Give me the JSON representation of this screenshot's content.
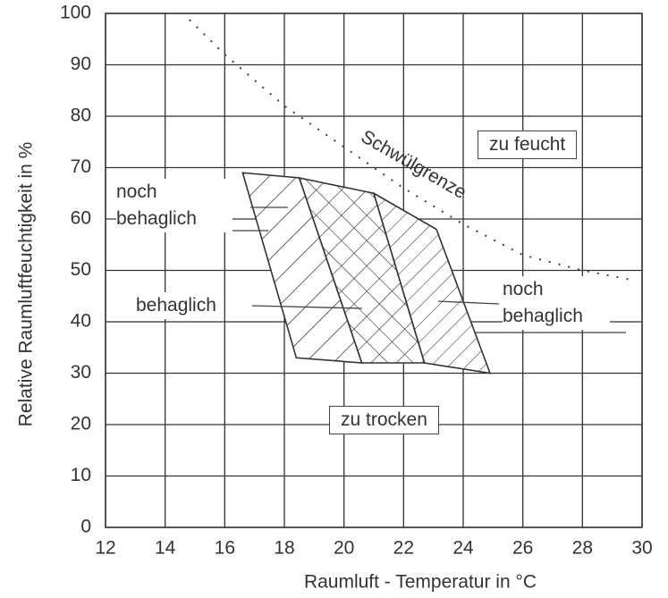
{
  "chart_data": {
    "type": "region",
    "xlabel": "Raumluft - Temperatur in °C",
    "ylabel": "Relative Raumluftfeuchtigkeit in %",
    "xlim": [
      12,
      30
    ],
    "ylim": [
      0,
      100
    ],
    "xticks": [
      12,
      14,
      16,
      18,
      20,
      22,
      24,
      26,
      28,
      30
    ],
    "yticks": [
      0,
      10,
      20,
      30,
      40,
      50,
      60,
      70,
      80,
      90,
      100
    ],
    "grid": true,
    "color": "#333333",
    "series": [
      {
        "name": "Schwülgrenze",
        "color": "#444444",
        "style": "dotted",
        "x": [
          14.6,
          16,
          18,
          20,
          22,
          24,
          26,
          28,
          29.8
        ],
        "values": [
          100,
          92,
          82,
          74,
          66,
          59,
          53,
          50,
          48
        ]
      }
    ],
    "regions": [
      {
        "name": "noch behaglich",
        "hatch": "diagonal",
        "x": [
          16.6,
          18.5,
          20.6,
          18.4
        ],
        "values": [
          69,
          68,
          32,
          33
        ]
      },
      {
        "name": "behaglich",
        "hatch": "cross",
        "x": [
          18.5,
          21.0,
          22.7,
          20.6
        ],
        "values": [
          68,
          65,
          32,
          32
        ]
      },
      {
        "name": "noch behaglich",
        "hatch": "diagonal-fine",
        "x": [
          21.0,
          23.1,
          24.9,
          22.7
        ],
        "values": [
          65,
          58,
          30,
          32
        ]
      }
    ],
    "annotations": [
      "zu feucht",
      "zu trocken"
    ]
  }
}
